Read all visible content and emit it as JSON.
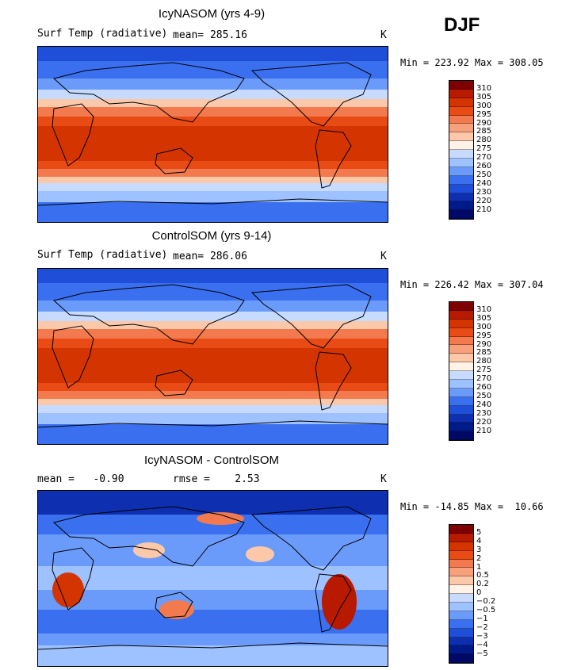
{
  "season": "DJF",
  "panels": [
    {
      "title": "IcyNASOM (yrs 4-9)",
      "left_label": "Surf Temp (radiative)",
      "stat_text": "mean= 285.16",
      "units": "K",
      "minmax": "Min = 223.92 Max = 308.05",
      "colorbar_ticks": [
        "310",
        "305",
        "300",
        "295",
        "290",
        "285",
        "280",
        "275",
        "270",
        "260",
        "250",
        "240",
        "230",
        "220",
        "210"
      ]
    },
    {
      "title": "ControlSOM (yrs 9-14)",
      "left_label": "Surf Temp (radiative)",
      "stat_text": "mean= 286.06",
      "units": "K",
      "minmax": "Min = 226.42 Max = 307.04",
      "colorbar_ticks": [
        "310",
        "305",
        "300",
        "295",
        "290",
        "285",
        "280",
        "275",
        "270",
        "260",
        "250",
        "240",
        "230",
        "220",
        "210"
      ]
    },
    {
      "title": "IcyNASOM - ControlSOM",
      "left_label": "mean =   -0.90",
      "stat_text": "rmse =    2.53",
      "units": "K",
      "minmax": "Min = -14.85 Max =  10.66",
      "colorbar_ticks": [
        "5",
        "4",
        "3",
        "2",
        "1",
        "0.5",
        "0.2",
        "0",
        "−0.2",
        "−0.5",
        "−1",
        "−2",
        "−3",
        "−4",
        "−5"
      ]
    }
  ],
  "colors": {
    "scale": [
      "#7f0000",
      "#b81a00",
      "#d43500",
      "#e84b14",
      "#f27a4e",
      "#f7a07c",
      "#fcc8aa",
      "#fff2e6",
      "#c6dbff",
      "#9ec2ff",
      "#6b9bfa",
      "#3a70f0",
      "#1f4fd8",
      "#0d2fb0",
      "#001a8a",
      "#000a66"
    ],
    "land": "#9ec2ff"
  },
  "chart_data": [
    {
      "type": "heatmap",
      "title": "IcyNASOM (yrs 4-9)",
      "variable": "Surf Temp (radiative)",
      "units": "K",
      "mean": 285.16,
      "min": 223.92,
      "max": 308.05,
      "levels": [
        210,
        220,
        230,
        240,
        250,
        260,
        270,
        275,
        280,
        285,
        290,
        295,
        300,
        305,
        310
      ]
    },
    {
      "type": "heatmap",
      "title": "ControlSOM (yrs 9-14)",
      "variable": "Surf Temp (radiative)",
      "units": "K",
      "mean": 286.06,
      "min": 226.42,
      "max": 307.04,
      "levels": [
        210,
        220,
        230,
        240,
        250,
        260,
        270,
        275,
        280,
        285,
        290,
        295,
        300,
        305,
        310
      ]
    },
    {
      "type": "heatmap",
      "title": "IcyNASOM - ControlSOM",
      "units": "K",
      "mean": -0.9,
      "rmse": 2.53,
      "min": -14.85,
      "max": 10.66,
      "levels": [
        -5,
        -4,
        -3,
        -2,
        -1,
        -0.5,
        -0.2,
        0,
        0.2,
        0.5,
        1,
        2,
        3,
        4,
        5
      ]
    }
  ]
}
